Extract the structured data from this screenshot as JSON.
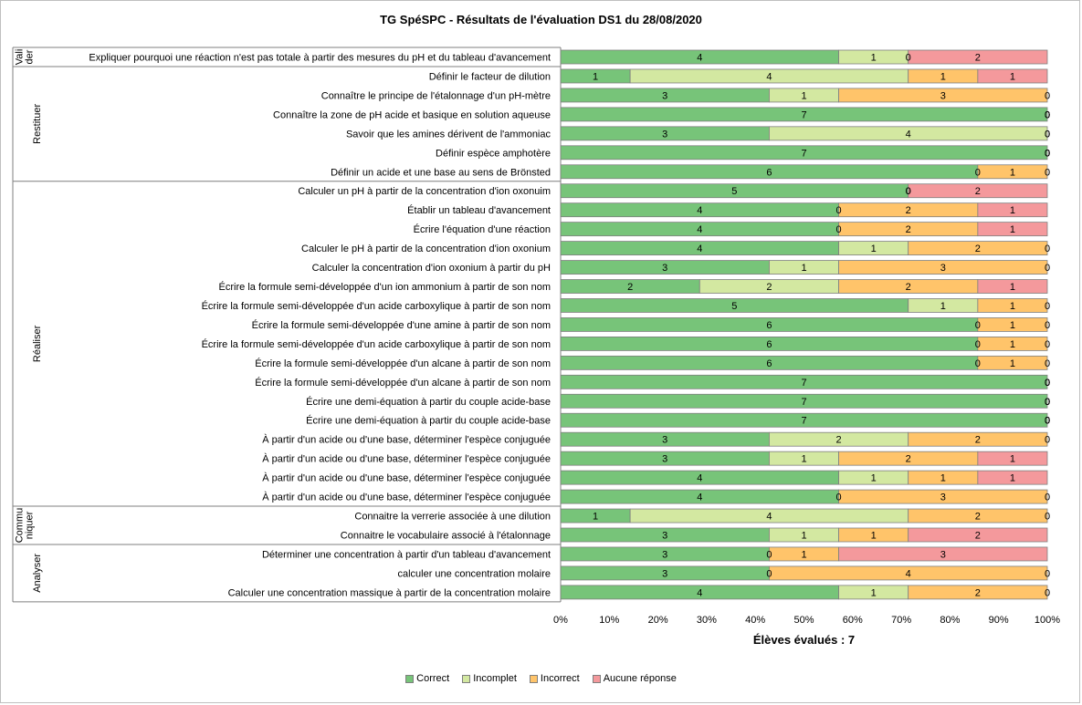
{
  "chart_data": {
    "type": "bar",
    "orientation": "horizontal",
    "stacked": "percent",
    "title": "TG SpéSPC - Résultats de l'évaluation DS1 du 28/08/2020",
    "xlabel": "Élèves évalués : 7",
    "xlim": [
      0,
      100
    ],
    "x_ticks": [
      "0%",
      "10%",
      "20%",
      "30%",
      "40%",
      "50%",
      "60%",
      "70%",
      "80%",
      "90%",
      "100%"
    ],
    "legend_position": "bottom",
    "series": [
      {
        "name": "Correct",
        "color": "#77c479"
      },
      {
        "name": "Incomplet",
        "color": "#d3e8a1"
      },
      {
        "name": "Incorrect",
        "color": "#ffc46a"
      },
      {
        "name": "Aucune réponse",
        "color": "#f4999c"
      }
    ],
    "groups": [
      {
        "label": "Vali\nder",
        "items": [
          {
            "label": "Expliquer pourquoi une réaction n'est pas totale à partir des mesures du pH et du tableau d'avancement",
            "values": [
              4,
              1,
              0,
              2
            ]
          }
        ]
      },
      {
        "label": "Restituer",
        "items": [
          {
            "label": "Définir le facteur de dilution",
            "values": [
              1,
              4,
              1,
              1
            ]
          },
          {
            "label": "Connaître le principe de l'étalonnage d'un pH-mètre",
            "values": [
              3,
              1,
              3,
              0
            ]
          },
          {
            "label": "Connaître la zone de pH acide et basique en solution aqueuse",
            "values": [
              7,
              0,
              0,
              0
            ]
          },
          {
            "label": "Savoir que les amines dérivent de l'ammoniac",
            "values": [
              3,
              4,
              0,
              0
            ]
          },
          {
            "label": "Définir espèce amphotère",
            "values": [
              7,
              0,
              0,
              0
            ]
          },
          {
            "label": "Définir un acide et une base au sens de Brönsted",
            "values": [
              6,
              0,
              1,
              0
            ]
          }
        ]
      },
      {
        "label": "Réaliser",
        "items": [
          {
            "label": "Calculer un pH à partir de la concentration d'ion oxonuim",
            "values": [
              5,
              0,
              0,
              2
            ]
          },
          {
            "label": "Établir un tableau d'avancement",
            "values": [
              4,
              0,
              2,
              1
            ]
          },
          {
            "label": "Écrire l'équation d'une réaction",
            "values": [
              4,
              0,
              2,
              1
            ]
          },
          {
            "label": "Calculer le pH à partir de la concentration d'ion oxonium",
            "values": [
              4,
              1,
              2,
              0
            ]
          },
          {
            "label": "Calculer la concentration d'ion oxonium à partir du pH",
            "values": [
              3,
              1,
              3,
              0
            ]
          },
          {
            "label": "Écrire la formule semi-développée d'un ion ammonium à partir de son nom",
            "values": [
              2,
              2,
              2,
              1
            ]
          },
          {
            "label": "Écrire la formule semi-développée d'un acide carboxylique à partir de son nom",
            "values": [
              5,
              1,
              1,
              0
            ]
          },
          {
            "label": "Écrire la formule semi-développée d'une amine à partir de son nom",
            "values": [
              6,
              0,
              1,
              0
            ]
          },
          {
            "label": "Écrire la formule semi-développée d'un acide carboxylique à partir de son nom",
            "values": [
              6,
              0,
              1,
              0
            ]
          },
          {
            "label": "Écrire la formule semi-développée d'un alcane à partir de son nom",
            "values": [
              6,
              0,
              1,
              0
            ]
          },
          {
            "label": "Écrire la formule semi-développée d'un alcane à partir de son nom",
            "values": [
              7,
              0,
              0,
              0
            ]
          },
          {
            "label": "Écrire une demi-équation à partir du couple acide-base",
            "values": [
              7,
              0,
              0,
              0
            ]
          },
          {
            "label": "Écrire une demi-équation à partir du couple acide-base",
            "values": [
              7,
              0,
              0,
              0
            ]
          },
          {
            "label": "À partir d'un acide ou d'une base, déterminer l'espèce conjuguée",
            "values": [
              3,
              2,
              2,
              0
            ]
          },
          {
            "label": "À partir d'un acide ou d'une base, déterminer l'espèce conjuguée",
            "values": [
              3,
              1,
              2,
              1
            ]
          },
          {
            "label": "À partir d'un acide ou d'une base, déterminer l'espèce conjuguée",
            "values": [
              4,
              1,
              1,
              1
            ]
          },
          {
            "label": "À partir d'un acide ou d'une base, déterminer l'espèce conjuguée",
            "values": [
              4,
              0,
              3,
              0
            ]
          }
        ]
      },
      {
        "label": "Commu\nniquer",
        "items": [
          {
            "label": "Connaitre la verrerie associée à une dilution",
            "values": [
              1,
              4,
              2,
              0
            ]
          },
          {
            "label": "Connaitre le vocabulaire associé à l'étalonnage",
            "values": [
              3,
              1,
              1,
              2
            ]
          }
        ]
      },
      {
        "label": "Analyser",
        "items": [
          {
            "label": "Déterminer une concentration à partir d'un tableau d'avancement",
            "values": [
              3,
              0,
              1,
              3
            ]
          },
          {
            "label": "calculer une concentration molaire",
            "values": [
              3,
              0,
              4,
              0
            ]
          },
          {
            "label": "Calculer une concentration massique à partir de la concentration molaire",
            "values": [
              4,
              1,
              2,
              0
            ]
          }
        ]
      }
    ]
  }
}
